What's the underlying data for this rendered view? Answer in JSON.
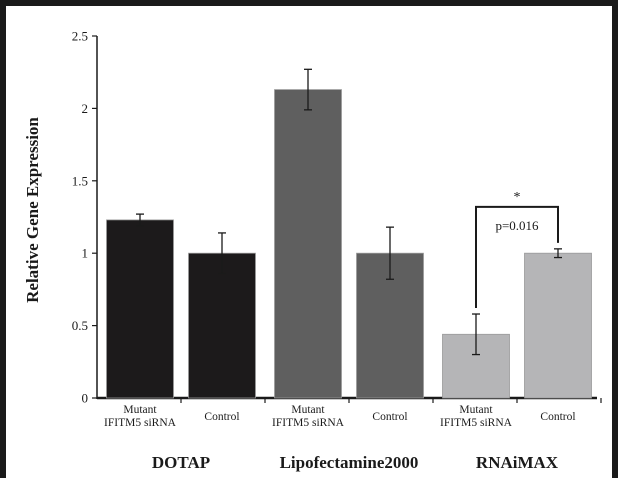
{
  "chart_data": {
    "type": "bar",
    "ylabel": "Relative Gene Expression",
    "ylim": [
      0,
      2.5
    ],
    "yticks": [
      0,
      0.5,
      1,
      1.5,
      2,
      2.5
    ],
    "ytick_labels": [
      "0",
      "0.5",
      "1",
      "1.5",
      "2",
      "2.5"
    ],
    "groups": [
      {
        "name": "DOTAP",
        "bars": [
          {
            "label": [
              "Mutant",
              "IFITM5 siRNA"
            ],
            "value": 1.23,
            "error": 0.04,
            "color": "#1c1a1b"
          },
          {
            "label": [
              "Control"
            ],
            "value": 1.0,
            "error": 0.14,
            "color": "#1c1a1b"
          }
        ]
      },
      {
        "name": "Lipofectamine2000",
        "bars": [
          {
            "label": [
              "Mutant",
              "IFITM5 siRNA"
            ],
            "value": 2.13,
            "error": 0.14,
            "color": "#5f5f5f"
          },
          {
            "label": [
              "Control"
            ],
            "value": 1.0,
            "error": 0.18,
            "color": "#5f5f5f"
          }
        ]
      },
      {
        "name": "RNAiMAX",
        "bars": [
          {
            "label": [
              "Mutant",
              "IFITM5 siRNA"
            ],
            "value": 0.44,
            "error": 0.14,
            "color": "#b5b5b7"
          },
          {
            "label": [
              "Control"
            ],
            "value": 1.0,
            "error": 0.03,
            "color": "#b5b5b7"
          }
        ]
      }
    ],
    "annotation": {
      "group": 2,
      "star": "*",
      "pvalue": "p=0.016",
      "bracket_y": 1.32
    }
  }
}
